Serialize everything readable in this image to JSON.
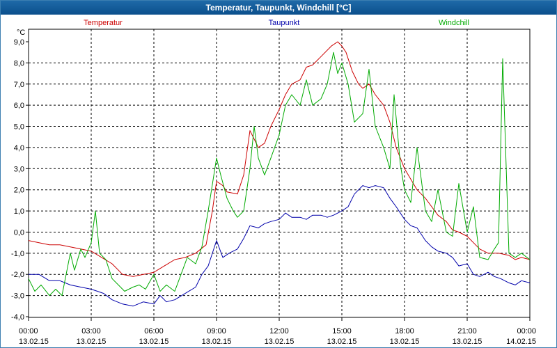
{
  "window": {
    "title": "Temperatur, Taupunkt, Windchill [°C]"
  },
  "chart_data": {
    "type": "line",
    "title": "Temperatur, Taupunkt, Windchill [°C]",
    "ylabel": "°C",
    "xlabel": "",
    "ylim": [
      -4,
      9
    ],
    "xlim": [
      0,
      24
    ],
    "grid": true,
    "y_ticks": [
      "9,0",
      "8,0",
      "7,0",
      "6,0",
      "5,0",
      "4,0",
      "3,0",
      "2,0",
      "1,0",
      "0,0",
      "-1,0",
      "-2,0",
      "-3,0",
      "-4,0"
    ],
    "x_ticks": [
      {
        "time": "00:00",
        "date": "13.02.15"
      },
      {
        "time": "03:00",
        "date": "13.02.15"
      },
      {
        "time": "06:00",
        "date": "13.02.15"
      },
      {
        "time": "09:00",
        "date": "13.02.15"
      },
      {
        "time": "12:00",
        "date": "13.02.15"
      },
      {
        "time": "15:00",
        "date": "13.02.15"
      },
      {
        "time": "18:00",
        "date": "13.02.15"
      },
      {
        "time": "21:00",
        "date": "13.02.15"
      },
      {
        "time": "00:00",
        "date": "14.02.15"
      }
    ],
    "series": [
      {
        "name": "Temperatur",
        "color": "#cc0000",
        "points": [
          [
            0,
            -0.4
          ],
          [
            0.5,
            -0.5
          ],
          [
            1,
            -0.6
          ],
          [
            1.5,
            -0.6
          ],
          [
            2,
            -0.7
          ],
          [
            2.5,
            -0.8
          ],
          [
            3,
            -0.9
          ],
          [
            3.5,
            -1.2
          ],
          [
            4,
            -1.5
          ],
          [
            4.5,
            -2.0
          ],
          [
            5,
            -2.1
          ],
          [
            5.5,
            -2.0
          ],
          [
            6,
            -1.9
          ],
          [
            6.5,
            -1.6
          ],
          [
            7,
            -1.3
          ],
          [
            7.5,
            -1.2
          ],
          [
            8,
            -1.0
          ],
          [
            8.5,
            -0.6
          ],
          [
            8.8,
            1.0
          ],
          [
            9,
            2.4
          ],
          [
            9.3,
            2.2
          ],
          [
            9.5,
            1.9
          ],
          [
            10,
            1.8
          ],
          [
            10.3,
            2.7
          ],
          [
            10.6,
            4.8
          ],
          [
            11,
            4.0
          ],
          [
            11.3,
            4.2
          ],
          [
            11.6,
            5.0
          ],
          [
            12,
            5.8
          ],
          [
            12.3,
            6.5
          ],
          [
            12.6,
            7.0
          ],
          [
            13,
            7.2
          ],
          [
            13.3,
            7.8
          ],
          [
            13.6,
            7.9
          ],
          [
            14,
            8.3
          ],
          [
            14.5,
            8.8
          ],
          [
            14.8,
            9.0
          ],
          [
            15,
            8.8
          ],
          [
            15.2,
            8.5
          ],
          [
            15.5,
            7.6
          ],
          [
            15.8,
            7.0
          ],
          [
            16,
            6.8
          ],
          [
            16.3,
            7.0
          ],
          [
            16.6,
            6.5
          ],
          [
            17,
            6.0
          ],
          [
            17.3,
            5.2
          ],
          [
            17.6,
            4.0
          ],
          [
            18,
            3.0
          ],
          [
            18.3,
            2.5
          ],
          [
            18.6,
            2.0
          ],
          [
            19,
            1.6
          ],
          [
            19.3,
            1.2
          ],
          [
            19.6,
            0.8
          ],
          [
            20,
            0.5
          ],
          [
            20.3,
            0.1
          ],
          [
            20.6,
            0.0
          ],
          [
            21,
            -0.2
          ],
          [
            21.3,
            -0.5
          ],
          [
            21.6,
            -0.8
          ],
          [
            22,
            -1.0
          ],
          [
            22.5,
            -1.0
          ],
          [
            23,
            -1.1
          ],
          [
            23.3,
            -1.3
          ],
          [
            23.6,
            -1.2
          ],
          [
            24,
            -1.3
          ]
        ]
      },
      {
        "name": "Taupunkt",
        "color": "#0000aa",
        "points": [
          [
            0,
            -2.0
          ],
          [
            0.5,
            -2.0
          ],
          [
            1,
            -2.3
          ],
          [
            1.5,
            -2.3
          ],
          [
            2,
            -2.5
          ],
          [
            2.5,
            -2.6
          ],
          [
            3,
            -2.7
          ],
          [
            3.3,
            -2.8
          ],
          [
            3.6,
            -2.9
          ],
          [
            4,
            -3.2
          ],
          [
            4.5,
            -3.4
          ],
          [
            5,
            -3.5
          ],
          [
            5.5,
            -3.3
          ],
          [
            6,
            -3.4
          ],
          [
            6.3,
            -3.0
          ],
          [
            6.6,
            -3.3
          ],
          [
            7,
            -3.2
          ],
          [
            7.5,
            -2.9
          ],
          [
            8,
            -2.6
          ],
          [
            8.3,
            -2.0
          ],
          [
            8.6,
            -1.6
          ],
          [
            9,
            -0.4
          ],
          [
            9.3,
            -1.2
          ],
          [
            9.6,
            -1.0
          ],
          [
            10,
            -0.8
          ],
          [
            10.3,
            -0.3
          ],
          [
            10.6,
            0.3
          ],
          [
            11,
            0.2
          ],
          [
            11.3,
            0.4
          ],
          [
            11.6,
            0.5
          ],
          [
            12,
            0.6
          ],
          [
            12.3,
            0.9
          ],
          [
            12.6,
            0.7
          ],
          [
            13,
            0.7
          ],
          [
            13.3,
            0.6
          ],
          [
            13.6,
            0.8
          ],
          [
            14,
            0.8
          ],
          [
            14.3,
            0.7
          ],
          [
            14.6,
            0.8
          ],
          [
            15,
            1.0
          ],
          [
            15.3,
            1.2
          ],
          [
            15.6,
            1.8
          ],
          [
            16,
            2.2
          ],
          [
            16.3,
            2.1
          ],
          [
            16.6,
            2.2
          ],
          [
            17,
            2.1
          ],
          [
            17.3,
            1.6
          ],
          [
            17.6,
            1.2
          ],
          [
            18,
            0.6
          ],
          [
            18.3,
            0.3
          ],
          [
            18.6,
            0.2
          ],
          [
            19,
            -0.4
          ],
          [
            19.3,
            -0.7
          ],
          [
            19.6,
            -0.9
          ],
          [
            20,
            -1.0
          ],
          [
            20.3,
            -1.2
          ],
          [
            20.6,
            -1.6
          ],
          [
            21,
            -1.5
          ],
          [
            21.3,
            -2.0
          ],
          [
            21.6,
            -2.1
          ],
          [
            22,
            -1.9
          ],
          [
            22.3,
            -2.1
          ],
          [
            22.6,
            -2.2
          ],
          [
            23,
            -2.4
          ],
          [
            23.3,
            -2.5
          ],
          [
            23.6,
            -2.3
          ],
          [
            24,
            -2.4
          ]
        ]
      },
      {
        "name": "Windchill",
        "color": "#00aa00",
        "points": [
          [
            0,
            -2.2
          ],
          [
            0.3,
            -2.8
          ],
          [
            0.6,
            -2.5
          ],
          [
            1,
            -3.0
          ],
          [
            1.3,
            -2.7
          ],
          [
            1.6,
            -3.0
          ],
          [
            2,
            -1.0
          ],
          [
            2.2,
            -1.8
          ],
          [
            2.5,
            -0.8
          ],
          [
            2.7,
            -1.2
          ],
          [
            3,
            -0.5
          ],
          [
            3.2,
            1.0
          ],
          [
            3.4,
            -1.0
          ],
          [
            3.7,
            -1.3
          ],
          [
            4,
            -2.2
          ],
          [
            4.3,
            -2.5
          ],
          [
            4.6,
            -2.8
          ],
          [
            5,
            -2.6
          ],
          [
            5.3,
            -2.5
          ],
          [
            5.6,
            -2.7
          ],
          [
            6,
            -2.0
          ],
          [
            6.3,
            -2.8
          ],
          [
            6.6,
            -2.5
          ],
          [
            7,
            -2.8
          ],
          [
            7.3,
            -2.0
          ],
          [
            7.6,
            -1.2
          ],
          [
            8,
            -1.5
          ],
          [
            8.3,
            -0.7
          ],
          [
            8.6,
            1.0
          ],
          [
            9,
            3.5
          ],
          [
            9.2,
            2.7
          ],
          [
            9.5,
            1.6
          ],
          [
            9.8,
            1.0
          ],
          [
            10,
            0.7
          ],
          [
            10.3,
            1.0
          ],
          [
            10.6,
            3.0
          ],
          [
            10.8,
            5.0
          ],
          [
            11,
            3.5
          ],
          [
            11.3,
            2.7
          ],
          [
            11.6,
            3.5
          ],
          [
            12,
            4.6
          ],
          [
            12.3,
            6.0
          ],
          [
            12.6,
            6.5
          ],
          [
            13,
            6.0
          ],
          [
            13.3,
            7.2
          ],
          [
            13.6,
            6.0
          ],
          [
            14,
            6.3
          ],
          [
            14.3,
            7.0
          ],
          [
            14.6,
            8.5
          ],
          [
            14.8,
            7.5
          ],
          [
            15,
            8.0
          ],
          [
            15.3,
            7.0
          ],
          [
            15.6,
            5.2
          ],
          [
            16,
            5.6
          ],
          [
            16.3,
            7.7
          ],
          [
            16.6,
            5.0
          ],
          [
            17,
            4.0
          ],
          [
            17.3,
            3.0
          ],
          [
            17.5,
            6.5
          ],
          [
            17.8,
            3.2
          ],
          [
            18,
            2.0
          ],
          [
            18.3,
            1.4
          ],
          [
            18.6,
            4.0
          ],
          [
            19,
            1.0
          ],
          [
            19.3,
            0.5
          ],
          [
            19.6,
            2.0
          ],
          [
            20,
            0.0
          ],
          [
            20.3,
            -0.2
          ],
          [
            20.6,
            2.3
          ],
          [
            21,
            0.0
          ],
          [
            21.3,
            1.2
          ],
          [
            21.6,
            -1.2
          ],
          [
            22,
            -1.3
          ],
          [
            22.3,
            -0.8
          ],
          [
            22.5,
            -0.5
          ],
          [
            22.7,
            8.2
          ],
          [
            23,
            -1.0
          ],
          [
            23.3,
            -1.2
          ],
          [
            23.6,
            -1.0
          ],
          [
            24,
            -1.3
          ]
        ]
      }
    ]
  }
}
